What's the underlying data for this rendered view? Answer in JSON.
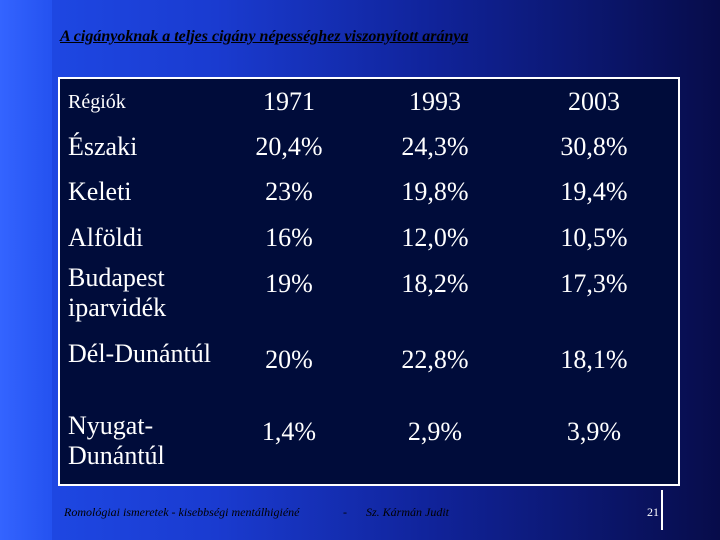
{
  "title": "A cigányoknak a teljes cigány népességhez viszonyított aránya",
  "table": {
    "header": {
      "region": "Régiók",
      "years": [
        "1971",
        "1993",
        "2003"
      ]
    },
    "rows": [
      {
        "region": "Északi",
        "values": [
          "20,4%",
          "24,3%",
          "30,8%"
        ]
      },
      {
        "region": "Keleti",
        "values": [
          "23%",
          "19,8%",
          "19,4%"
        ]
      },
      {
        "region": "Alföldi",
        "values": [
          "16%",
          "12,0%",
          "10,5%"
        ]
      },
      {
        "region": "Budapest iparvidék",
        "values": [
          "19%",
          "18,2%",
          "17,3%"
        ]
      },
      {
        "region": "Dél-Dunántúl",
        "values": [
          "20%",
          "22,8%",
          "18,1%"
        ]
      },
      {
        "region": "Nyugat-Dunántúl",
        "values": [
          "1,4%",
          "2,9%",
          "3,9%"
        ]
      }
    ]
  },
  "footer": {
    "course": "Romológiai ismeretek - kisebbségi mentálhigiéné",
    "separator": "-",
    "author": "Sz. Kármán Judit",
    "page": "21"
  }
}
